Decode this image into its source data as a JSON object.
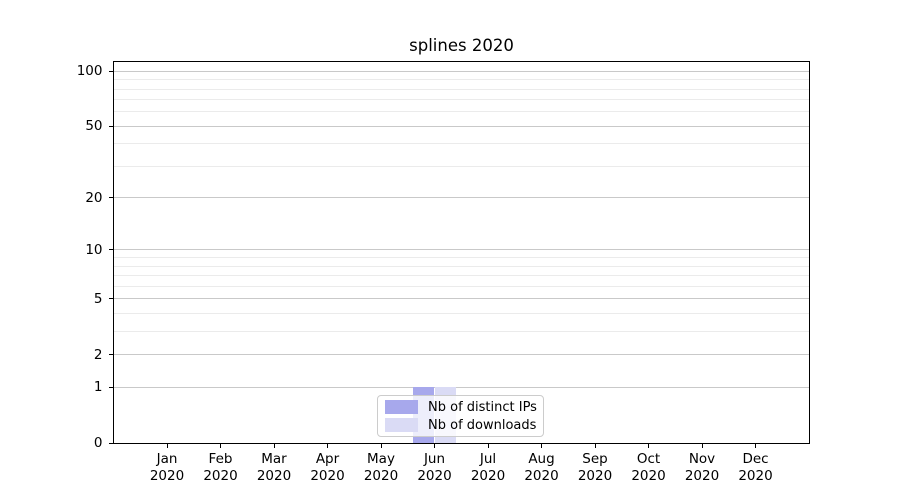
{
  "title": "splines 2020",
  "colors": {
    "axis": "#000000",
    "major_grid": "#c9c9c9",
    "minor_grid": "#ebebeb",
    "legend_border": "#cccccc",
    "distinct_ips_bar": "#a7a8ec",
    "downloads_bar": "#dadbf5"
  },
  "x_axis": {
    "year_label": "2020",
    "months": [
      "Jan",
      "Feb",
      "Mar",
      "Apr",
      "May",
      "Jun",
      "Jul",
      "Aug",
      "Sep",
      "Oct",
      "Nov",
      "Dec"
    ]
  },
  "y_axis": {
    "major_ticks": [
      0,
      1,
      2,
      5,
      10,
      20,
      50,
      100
    ],
    "minor_ticks": [
      3,
      4,
      6,
      7,
      8,
      9,
      30,
      40,
      60,
      70,
      80,
      90
    ]
  },
  "legend": {
    "entries": [
      "Nb of distinct IPs",
      "Nb of downloads"
    ]
  },
  "chart_data": {
    "type": "bar",
    "title": "splines 2020",
    "categories": [
      "Jan 2020",
      "Feb 2020",
      "Mar 2020",
      "Apr 2020",
      "May 2020",
      "Jun 2020",
      "Jul 2020",
      "Aug 2020",
      "Sep 2020",
      "Oct 2020",
      "Nov 2020",
      "Dec 2020"
    ],
    "series": [
      {
        "name": "Nb of distinct IPs",
        "color": "#a7a8ec",
        "values": [
          0,
          0,
          0,
          0,
          0,
          1,
          0,
          0,
          0,
          0,
          0,
          0
        ]
      },
      {
        "name": "Nb of downloads",
        "color": "#dadbf5",
        "values": [
          0,
          0,
          0,
          0,
          0,
          1,
          0,
          0,
          0,
          0,
          0,
          0
        ]
      }
    ],
    "xlabel": "",
    "ylabel": "",
    "yscale": "log1p",
    "ylim": [
      0,
      113
    ],
    "yticks_major": [
      0,
      1,
      2,
      5,
      10,
      20,
      50,
      100
    ],
    "yticks_minor": [
      3,
      4,
      6,
      7,
      8,
      9,
      30,
      40,
      60,
      70,
      80,
      90
    ],
    "grid": true,
    "legend_position": "lower center"
  }
}
